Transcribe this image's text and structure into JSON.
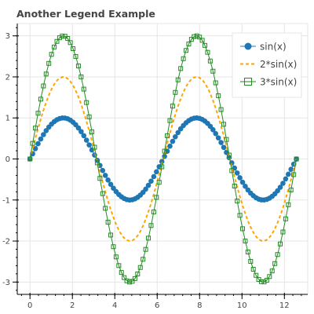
{
  "chart_data": {
    "type": "line",
    "title": "Another Legend Example",
    "xlabel": "",
    "ylabel": "",
    "xlim": [
      -0.6,
      13.1
    ],
    "ylim": [
      -3.3,
      3.3
    ],
    "x_ticks": [
      0,
      2,
      4,
      6,
      8,
      10,
      12
    ],
    "y_ticks": [
      -3,
      -2,
      -1,
      0,
      1,
      2,
      3
    ],
    "grid": true,
    "legend_position": "top-right",
    "x": {
      "start": 0,
      "stop": 12.566,
      "count": 100
    },
    "series": [
      {
        "name": "sin(x)",
        "function": "sin(x)",
        "style": "line-with-circle-markers",
        "color": "#1f77b4"
      },
      {
        "name": "2*sin(x)",
        "function": "2*sin(x)",
        "style": "dashed-line",
        "color": "#ffa500"
      },
      {
        "name": "3*sin(x)",
        "function": "3*sin(x)",
        "style": "line-with-square-markers",
        "color": "#228b22"
      }
    ]
  }
}
